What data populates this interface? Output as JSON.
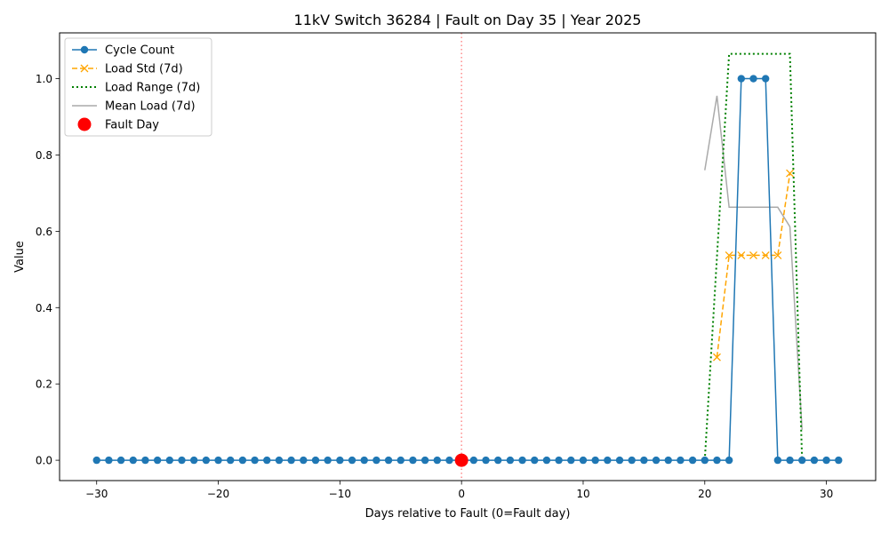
{
  "chart_data": {
    "type": "line",
    "title": "11kV Switch 36284 | Fault on Day 35 | Year 2025",
    "xlabel": "Days relative to Fault (0=Fault day)",
    "ylabel": "Value",
    "xlim": [
      -33.05,
      34.05
    ],
    "ylim": [
      -0.0533,
      1.12
    ],
    "x_ticks": [
      -30,
      -20,
      -10,
      0,
      10,
      20,
      30
    ],
    "y_ticks": [
      0.0,
      0.2,
      0.4,
      0.6,
      0.8,
      1.0
    ],
    "x_tick_labels": [
      "−30",
      "−20",
      "−10",
      "0",
      "10",
      "20",
      "30"
    ],
    "y_tick_labels": [
      "0.0",
      "0.2",
      "0.4",
      "0.6",
      "0.8",
      "1.0"
    ],
    "grid": false,
    "legend_position": "top-left",
    "fault_line_x": 0,
    "series": [
      {
        "name": "Cycle Count",
        "style": "solid-circle",
        "color": "#1f77b4",
        "x": [
          -30,
          -29,
          -28,
          -27,
          -26,
          -25,
          -24,
          -23,
          -22,
          -21,
          -20,
          -19,
          -18,
          -17,
          -16,
          -15,
          -14,
          -13,
          -12,
          -11,
          -10,
          -9,
          -8,
          -7,
          -6,
          -5,
          -4,
          -3,
          -2,
          -1,
          0,
          1,
          2,
          3,
          4,
          5,
          6,
          7,
          8,
          9,
          10,
          11,
          12,
          13,
          14,
          15,
          16,
          17,
          18,
          19,
          20,
          21,
          22,
          23,
          24,
          25,
          26,
          27,
          28,
          29,
          30,
          31
        ],
        "values": [
          0,
          0,
          0,
          0,
          0,
          0,
          0,
          0,
          0,
          0,
          0,
          0,
          0,
          0,
          0,
          0,
          0,
          0,
          0,
          0,
          0,
          0,
          0,
          0,
          0,
          0,
          0,
          0,
          0,
          0,
          0,
          0,
          0,
          0,
          0,
          0,
          0,
          0,
          0,
          0,
          0,
          0,
          0,
          0,
          0,
          0,
          0,
          0,
          0,
          0,
          0,
          0,
          0,
          1,
          1,
          1,
          0,
          0,
          0,
          0,
          0,
          0
        ]
      },
      {
        "name": "Load Std (7d)",
        "style": "dashed-x",
        "color": "#ffa500",
        "x": [
          21,
          22,
          23,
          24,
          25,
          26,
          27
        ],
        "values": [
          0.27,
          0.537,
          0.537,
          0.537,
          0.537,
          0.537,
          0.752
        ]
      },
      {
        "name": "Load Range (7d)",
        "style": "dotted",
        "color": "#008000",
        "x": [
          20,
          22,
          23,
          24,
          25,
          26,
          27,
          28
        ],
        "values": [
          0,
          1.065,
          1.065,
          1.065,
          1.065,
          1.065,
          1.065,
          0
        ]
      },
      {
        "name": "Mean Load (7d)",
        "style": "solid",
        "color": "#aaaaaa",
        "x": [
          20,
          21,
          22,
          23,
          24,
          25,
          26,
          27,
          28
        ],
        "values": [
          0.76,
          0.955,
          0.663,
          0.663,
          0.663,
          0.663,
          0.663,
          0.612,
          0.08
        ]
      },
      {
        "name": "Fault Day",
        "style": "marker-big",
        "color": "#ff0000",
        "x": [
          0
        ],
        "values": [
          0
        ]
      }
    ]
  }
}
